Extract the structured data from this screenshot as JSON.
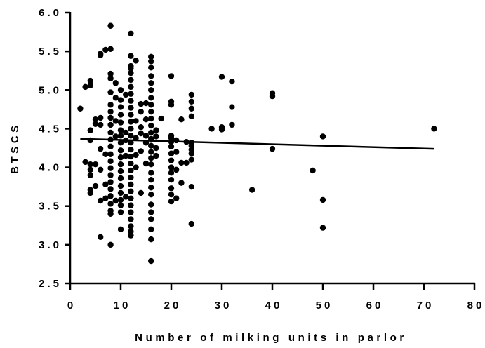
{
  "chart_data": {
    "type": "scatter",
    "title": "",
    "xlabel": "Number of milking units in parlor",
    "ylabel": "BTSCS",
    "xlim": [
      0,
      80
    ],
    "ylim": [
      2.5,
      6.0
    ],
    "x_ticks": [
      0,
      10,
      20,
      30,
      40,
      50,
      60,
      70,
      80
    ],
    "x_tick_labels": [
      "0",
      "10",
      "20",
      "30",
      "40",
      "50",
      "60",
      "70",
      "80"
    ],
    "y_ticks": [
      2.5,
      3.0,
      3.5,
      4.0,
      4.5,
      5.0,
      5.5,
      6.0
    ],
    "y_tick_labels": [
      "2.5",
      "3.0",
      "3.5",
      "4.0",
      "4.5",
      "5.0",
      "5.5",
      "6.0"
    ],
    "grid": false,
    "legend": "none",
    "marker_color": "#000000",
    "regression_line": {
      "x": [
        2,
        72
      ],
      "y": [
        4.37,
        4.24
      ]
    },
    "points": [
      [
        2,
        4.76
      ],
      [
        3,
        5.04
      ],
      [
        3,
        4.07
      ],
      [
        4,
        5.06
      ],
      [
        4,
        5.12
      ],
      [
        4,
        4.48
      ],
      [
        4,
        4.35
      ],
      [
        4,
        4.04
      ],
      [
        4,
        3.97
      ],
      [
        4,
        3.9
      ],
      [
        4,
        3.71
      ],
      [
        4,
        3.67
      ],
      [
        5,
        4.04
      ],
      [
        5,
        3.76
      ],
      [
        5,
        4.56
      ],
      [
        5,
        4.62
      ],
      [
        6,
        5.45
      ],
      [
        6,
        5.47
      ],
      [
        6,
        4.64
      ],
      [
        6,
        4.55
      ],
      [
        6,
        4.24
      ],
      [
        6,
        3.97
      ],
      [
        6,
        3.57
      ],
      [
        6,
        3.1
      ],
      [
        7,
        5.52
      ],
      [
        7,
        4.17
      ],
      [
        7,
        3.78
      ],
      [
        7,
        3.6
      ],
      [
        8,
        5.83
      ],
      [
        8,
        5.53
      ],
      [
        8,
        5.21
      ],
      [
        8,
        5.15
      ],
      [
        8,
        4.97
      ],
      [
        8,
        4.81
      ],
      [
        8,
        4.72
      ],
      [
        8,
        4.64
      ],
      [
        8,
        4.55
      ],
      [
        8,
        4.45
      ],
      [
        8,
        4.36
      ],
      [
        8,
        4.27
      ],
      [
        8,
        4.17
      ],
      [
        8,
        4.08
      ],
      [
        8,
        3.99
      ],
      [
        8,
        3.9
      ],
      [
        8,
        3.81
      ],
      [
        8,
        3.72
      ],
      [
        8,
        3.63
      ],
      [
        8,
        3.53
      ],
      [
        8,
        3.44
      ],
      [
        8,
        3.4
      ],
      [
        8,
        3.0
      ],
      [
        9,
        5.09
      ],
      [
        9,
        4.9
      ],
      [
        9,
        4.6
      ],
      [
        9,
        4.4
      ],
      [
        9,
        3.57
      ],
      [
        10,
        5.0
      ],
      [
        10,
        4.87
      ],
      [
        10,
        4.78
      ],
      [
        10,
        4.68
      ],
      [
        10,
        4.58
      ],
      [
        10,
        4.48
      ],
      [
        10,
        4.41
      ],
      [
        10,
        4.32
      ],
      [
        10,
        4.22
      ],
      [
        10,
        4.13
      ],
      [
        10,
        4.04
      ],
      [
        10,
        3.95
      ],
      [
        10,
        3.86
      ],
      [
        10,
        3.76
      ],
      [
        10,
        3.67
      ],
      [
        10,
        3.58
      ],
      [
        10,
        3.51
      ],
      [
        10,
        3.42
      ],
      [
        10,
        3.2
      ],
      [
        11,
        4.94
      ],
      [
        11,
        4.45
      ],
      [
        11,
        4.35
      ],
      [
        11,
        4.15
      ],
      [
        11,
        3.62
      ],
      [
        12,
        5.73
      ],
      [
        12,
        5.44
      ],
      [
        12,
        5.31
      ],
      [
        12,
        5.28
      ],
      [
        12,
        5.22
      ],
      [
        12,
        5.13
      ],
      [
        12,
        5.04
      ],
      [
        12,
        4.95
      ],
      [
        12,
        4.86
      ],
      [
        12,
        4.77
      ],
      [
        12,
        4.68
      ],
      [
        12,
        4.59
      ],
      [
        12,
        4.5
      ],
      [
        12,
        4.41
      ],
      [
        12,
        4.32
      ],
      [
        12,
        4.23
      ],
      [
        12,
        4.14
      ],
      [
        12,
        4.05
      ],
      [
        12,
        3.96
      ],
      [
        12,
        3.87
      ],
      [
        12,
        3.78
      ],
      [
        12,
        3.69
      ],
      [
        12,
        3.6
      ],
      [
        12,
        3.51
      ],
      [
        12,
        3.42
      ],
      [
        12,
        3.33
      ],
      [
        12,
        3.24
      ],
      [
        12,
        3.17
      ],
      [
        12,
        3.12
      ],
      [
        13,
        5.38
      ],
      [
        13,
        4.6
      ],
      [
        13,
        4.38
      ],
      [
        13,
        4.16
      ],
      [
        13,
        4.0
      ],
      [
        14,
        4.82
      ],
      [
        14,
        4.72
      ],
      [
        14,
        4.52
      ],
      [
        14,
        4.44
      ],
      [
        14,
        4.21
      ],
      [
        14,
        3.67
      ],
      [
        15,
        4.83
      ],
      [
        15,
        4.62
      ],
      [
        15,
        4.41
      ],
      [
        15,
        4.32
      ],
      [
        15,
        4.05
      ],
      [
        16,
        5.43
      ],
      [
        16,
        5.37
      ],
      [
        16,
        5.29
      ],
      [
        16,
        5.18
      ],
      [
        16,
        5.09
      ],
      [
        16,
        5.0
      ],
      [
        16,
        4.9
      ],
      [
        16,
        4.81
      ],
      [
        16,
        4.72
      ],
      [
        16,
        4.63
      ],
      [
        16,
        4.54
      ],
      [
        16,
        4.45
      ],
      [
        16,
        4.37
      ],
      [
        16,
        4.28
      ],
      [
        16,
        4.2
      ],
      [
        16,
        4.12
      ],
      [
        16,
        4.04
      ],
      [
        16,
        3.93
      ],
      [
        16,
        3.84
      ],
      [
        16,
        3.74
      ],
      [
        16,
        3.65
      ],
      [
        16,
        3.52
      ],
      [
        16,
        3.42
      ],
      [
        16,
        3.33
      ],
      [
        16,
        3.2
      ],
      [
        16,
        3.07
      ],
      [
        16,
        2.79
      ],
      [
        17,
        4.48
      ],
      [
        17,
        4.4
      ],
      [
        17,
        4.25
      ],
      [
        17,
        4.15
      ],
      [
        18,
        4.63
      ],
      [
        20,
        5.18
      ],
      [
        20,
        4.85
      ],
      [
        20,
        4.81
      ],
      [
        20,
        4.41
      ],
      [
        20,
        4.38
      ],
      [
        20,
        4.33
      ],
      [
        20,
        4.27
      ],
      [
        20,
        4.18
      ],
      [
        20,
        4.09
      ],
      [
        20,
        4.0
      ],
      [
        20,
        3.93
      ],
      [
        20,
        3.84
      ],
      [
        20,
        3.73
      ],
      [
        20,
        3.65
      ],
      [
        20,
        3.56
      ],
      [
        21,
        4.35
      ],
      [
        21,
        4.2
      ],
      [
        21,
        3.97
      ],
      [
        21,
        3.6
      ],
      [
        22,
        4.62
      ],
      [
        22,
        4.06
      ],
      [
        22,
        3.8
      ],
      [
        23,
        4.06
      ],
      [
        23,
        4.33
      ],
      [
        24,
        4.94
      ],
      [
        24,
        4.85
      ],
      [
        24,
        4.76
      ],
      [
        24,
        4.66
      ],
      [
        24,
        4.32
      ],
      [
        24,
        4.28
      ],
      [
        24,
        4.23
      ],
      [
        24,
        4.18
      ],
      [
        24,
        4.1
      ],
      [
        24,
        3.75
      ],
      [
        24,
        3.27
      ],
      [
        28,
        4.5
      ],
      [
        30,
        5.17
      ],
      [
        30,
        4.52
      ],
      [
        30,
        4.49
      ],
      [
        32,
        5.11
      ],
      [
        32,
        4.78
      ],
      [
        32,
        4.55
      ],
      [
        36,
        3.71
      ],
      [
        40,
        4.96
      ],
      [
        40,
        4.92
      ],
      [
        40,
        4.24
      ],
      [
        48,
        3.96
      ],
      [
        50,
        4.4
      ],
      [
        50,
        3.58
      ],
      [
        50,
        3.22
      ],
      [
        72,
        4.5
      ]
    ]
  }
}
